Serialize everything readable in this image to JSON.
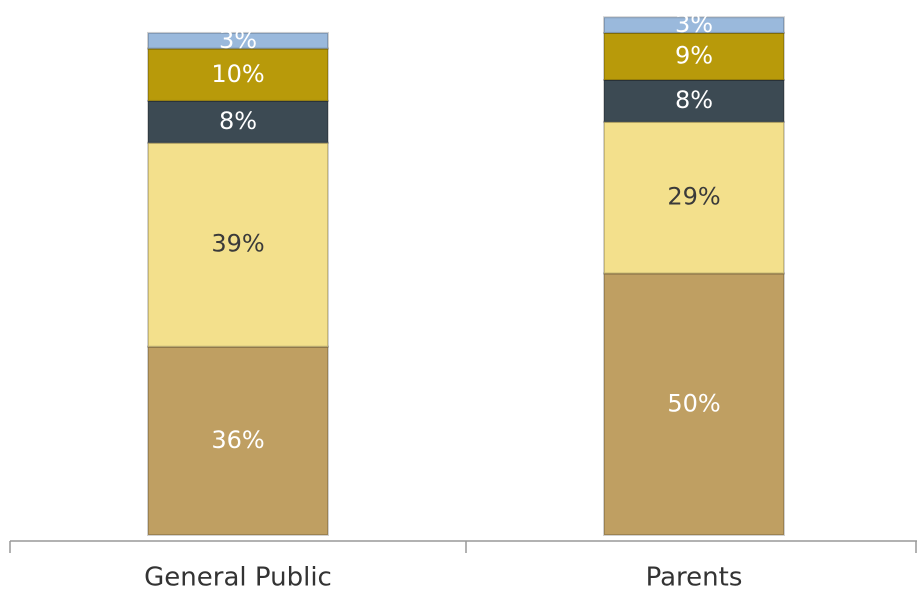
{
  "chart_data": {
    "type": "stacked_bar",
    "categories": [
      "General Public",
      "Parents"
    ],
    "series": [
      {
        "color": "#bf9f62",
        "label_color": "#ffffff",
        "values": [
          36,
          50
        ],
        "value_labels": [
          "36%",
          "50%"
        ]
      },
      {
        "color": "#f3e08c",
        "label_color": "#3a3a3a",
        "values": [
          39,
          29
        ],
        "value_labels": [
          "39%",
          "29%"
        ]
      },
      {
        "color": "#3c4a53",
        "label_color": "#ffffff",
        "values": [
          8,
          8
        ],
        "value_labels": [
          "8%",
          "8%"
        ]
      },
      {
        "color": "#b89a0a",
        "label_color": "#ffffff",
        "values": [
          10,
          9
        ],
        "value_labels": [
          "10%",
          "9%"
        ]
      },
      {
        "color": "#9ab9dc",
        "label_color": "#ffffff",
        "values": [
          3,
          3
        ],
        "value_labels": [
          "3%",
          "3%"
        ]
      }
    ],
    "ylim": [
      0,
      100
    ]
  }
}
